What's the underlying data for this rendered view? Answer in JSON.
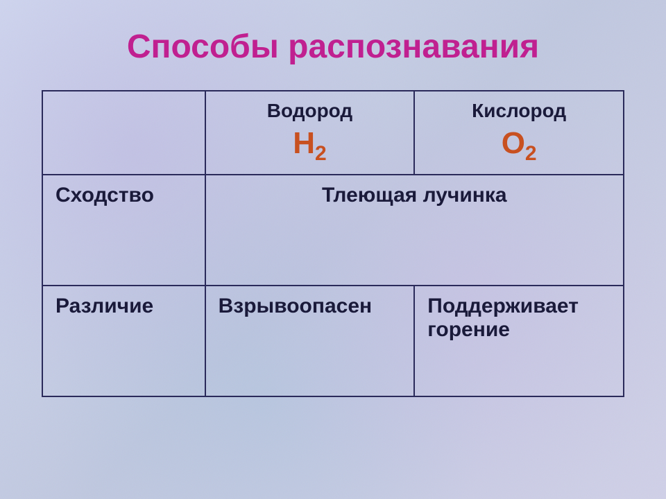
{
  "title": "Способы распознавания",
  "table": {
    "columns": [
      {
        "name": "Водород",
        "formula_base": "H",
        "formula_sub": "2"
      },
      {
        "name": "Кислород",
        "formula_base": "O",
        "formula_sub": "2"
      }
    ],
    "rows": [
      {
        "label": "Сходство",
        "merged": true,
        "merged_text": "Тлеющая лучинка"
      },
      {
        "label": "Различие",
        "merged": false,
        "cells": [
          "Взрывоопасен",
          "Поддерживает горение"
        ]
      }
    ]
  },
  "styling": {
    "title_color": "#c02090",
    "title_fontsize": 48,
    "formula_color": "#c85020",
    "formula_fontsize": 44,
    "text_color": "#1a1a3a",
    "cell_fontsize": 30,
    "border_color": "#2a2a5a",
    "background_base": "#c8d0e8",
    "table_width_pct": [
      28,
      36,
      36
    ]
  }
}
